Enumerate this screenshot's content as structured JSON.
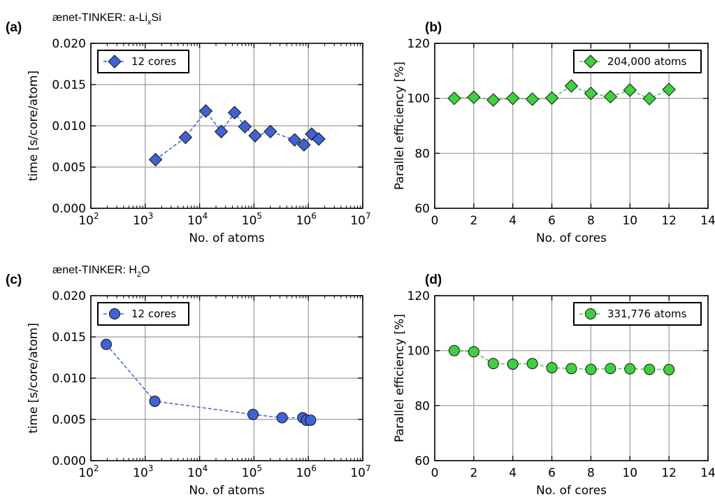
{
  "chart_data": [
    {
      "id": "a",
      "type": "scatter",
      "panel_label": "(a)",
      "title_parts": [
        "ænet-TINKER: a-Li",
        "x",
        "Si"
      ],
      "xlabel": "No. of atoms",
      "ylabel": "time [s/core/atom]",
      "xscale": "log",
      "xlim": [
        100,
        10000000
      ],
      "ylim": [
        0,
        0.02
      ],
      "xtick_labels": [
        "10",
        "10",
        "10",
        "10",
        "10",
        "10"
      ],
      "xtick_exponents": [
        "2",
        "3",
        "4",
        "5",
        "6",
        "7"
      ],
      "ytick_labels": [
        "0.000",
        "0.005",
        "0.010",
        "0.015",
        "0.020"
      ],
      "marker": "diamond",
      "color": "#3f62d4",
      "legend": "12 cores",
      "legend_position": "top-left",
      "grid": true,
      "x": [
        1550,
        5500,
        13000,
        25000,
        44000,
        68000,
        105000,
        200000,
        560000,
        830000,
        1150000,
        1550000
      ],
      "y": [
        0.0059,
        0.0086,
        0.0118,
        0.0093,
        0.0116,
        0.0099,
        0.0088,
        0.0093,
        0.0083,
        0.0077,
        0.009,
        0.0084
      ]
    },
    {
      "id": "b",
      "type": "scatter",
      "panel_label": "(b)",
      "xlabel": "No. of cores",
      "ylabel": "Parallel efficiency [%]",
      "xscale": "linear",
      "xlim": [
        0,
        14
      ],
      "ylim": [
        60,
        120
      ],
      "xtick_labels": [
        "0",
        "2",
        "4",
        "6",
        "8",
        "10",
        "12",
        "14"
      ],
      "ytick_labels": [
        "60",
        "80",
        "100",
        "120"
      ],
      "marker": "diamond",
      "color": "#3fcf3f",
      "legend": "204,000 atoms",
      "legend_position": "top-right",
      "grid": true,
      "x": [
        1,
        2,
        3,
        4,
        5,
        6,
        7,
        8,
        9,
        10,
        11,
        12
      ],
      "y": [
        100.0,
        100.4,
        99.4,
        100.0,
        99.7,
        100.1,
        104.5,
        101.8,
        100.6,
        103.0,
        99.9,
        103.2
      ]
    },
    {
      "id": "c",
      "type": "scatter",
      "panel_label": "(c)",
      "title_parts": [
        "ænet-TINKER: H",
        "2",
        "O"
      ],
      "xlabel": "No. of atoms",
      "ylabel": "time [s/core/atom]",
      "xscale": "log",
      "xlim": [
        100,
        10000000
      ],
      "ylim": [
        0,
        0.02
      ],
      "xtick_labels": [
        "10",
        "10",
        "10",
        "10",
        "10",
        "10"
      ],
      "xtick_exponents": [
        "2",
        "3",
        "4",
        "5",
        "6",
        "7"
      ],
      "ytick_labels": [
        "0.000",
        "0.005",
        "0.010",
        "0.015",
        "0.020"
      ],
      "marker": "circle",
      "color": "#3f62d4",
      "legend": "12 cores",
      "legend_position": "top-left",
      "grid": true,
      "x": [
        192,
        1500,
        96000,
        330000,
        790000,
        920000,
        1100000
      ],
      "y": [
        0.0141,
        0.0072,
        0.0056,
        0.0052,
        0.0052,
        0.0049,
        0.0049
      ]
    },
    {
      "id": "d",
      "type": "scatter",
      "panel_label": "(d)",
      "xlabel": "No. of cores",
      "ylabel": "Parallel efficiency [%]",
      "xscale": "linear",
      "xlim": [
        0,
        14
      ],
      "ylim": [
        60,
        120
      ],
      "xtick_labels": [
        "0",
        "2",
        "4",
        "6",
        "8",
        "10",
        "12",
        "14"
      ],
      "ytick_labels": [
        "60",
        "80",
        "100",
        "120"
      ],
      "marker": "circle",
      "color": "#3fcf3f",
      "legend": "331,776 atoms",
      "legend_position": "top-right",
      "grid": true,
      "x": [
        1,
        2,
        3,
        4,
        5,
        6,
        7,
        8,
        9,
        10,
        11,
        12
      ],
      "y": [
        100.0,
        99.6,
        95.3,
        95.1,
        95.3,
        93.8,
        93.5,
        93.2,
        93.5,
        93.4,
        93.2,
        93.1
      ]
    }
  ]
}
